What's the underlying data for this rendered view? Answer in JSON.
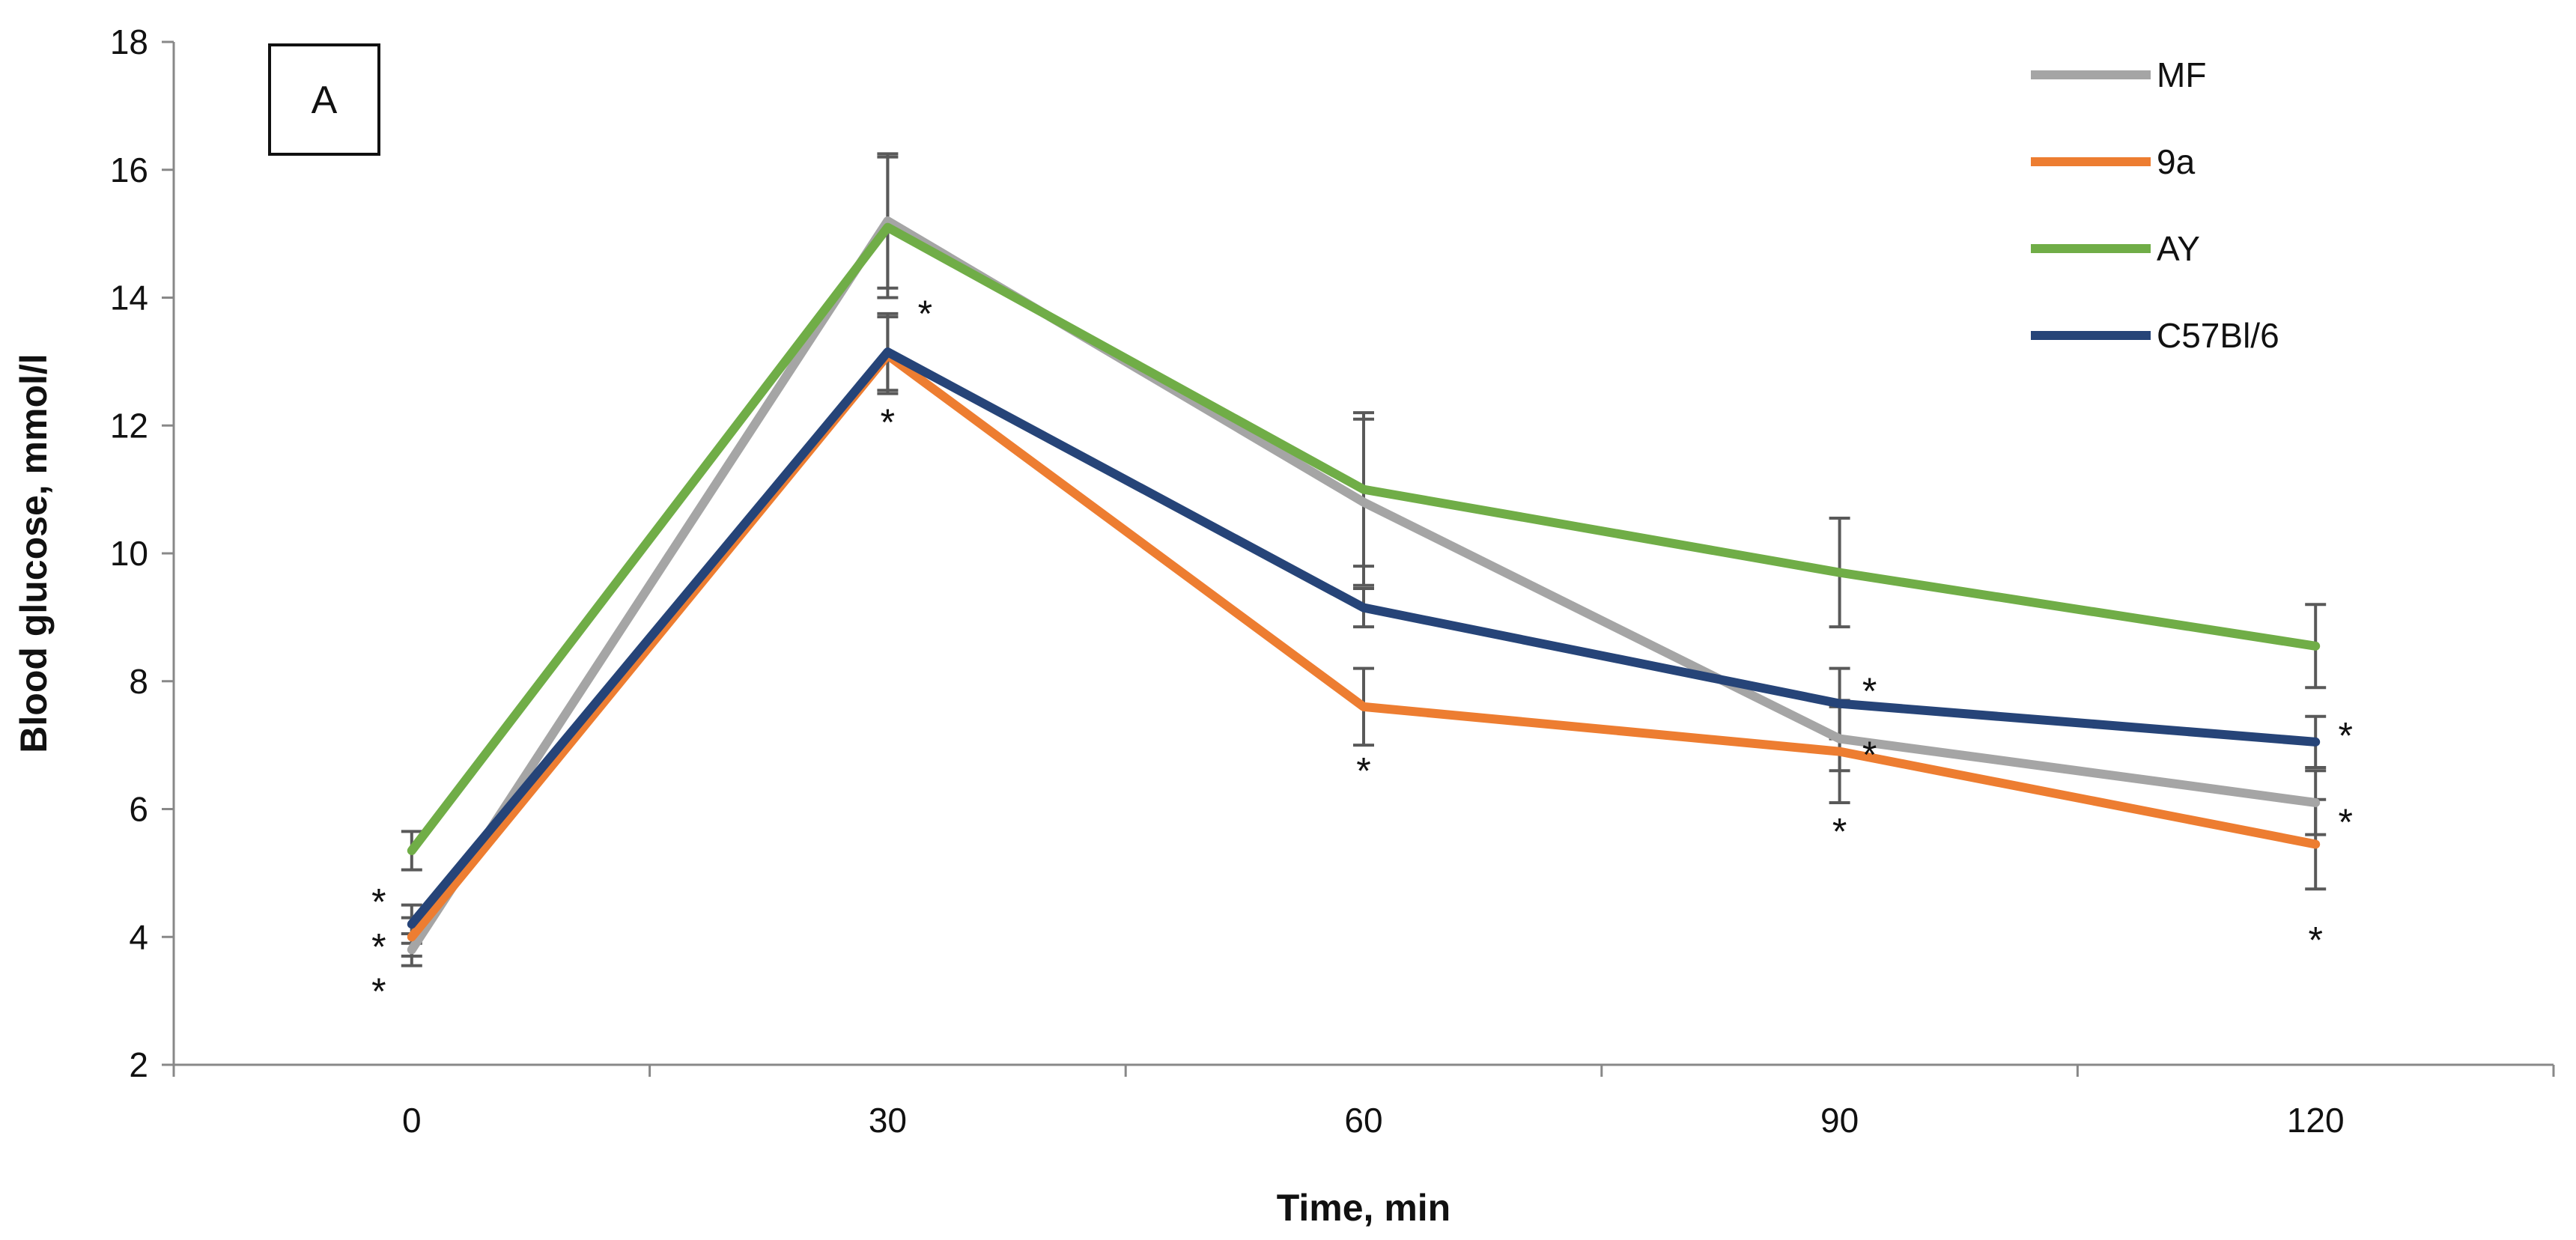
{
  "chart_data": {
    "type": "line",
    "panel_label": "A",
    "xlabel": "Time, min",
    "ylabel": "Blood glucose, mmol/l",
    "x": [
      0,
      30,
      60,
      90,
      120
    ],
    "x_tick_labels": [
      "0",
      "30",
      "60",
      "90",
      "120"
    ],
    "ylim": [
      2,
      18
    ],
    "y_ticks": [
      2,
      4,
      6,
      8,
      10,
      12,
      14,
      16,
      18
    ],
    "y_tick_labels": [
      "2",
      "4",
      "6",
      "8",
      "10",
      "12",
      "14",
      "16",
      "18"
    ],
    "legend_position": "top-right",
    "grid": false,
    "series": [
      {
        "name": "MF",
        "color": "#a5a5a5",
        "values": [
          3.8,
          15.2,
          10.8,
          7.1,
          6.1
        ],
        "errors": [
          0.25,
          1.05,
          1.3,
          0.5,
          0.5
        ]
      },
      {
        "name": "9a",
        "color": "#ed7d31",
        "values": [
          4.0,
          13.1,
          7.6,
          6.9,
          5.45
        ],
        "errors": [
          0.3,
          0.6,
          0.6,
          0.8,
          0.7
        ]
      },
      {
        "name": "AY",
        "color": "#70ad47",
        "values": [
          5.35,
          15.1,
          11.0,
          9.7,
          8.55
        ],
        "errors": [
          0.3,
          1.1,
          1.2,
          0.85,
          0.65
        ]
      },
      {
        "name": "C57Bl/6",
        "color": "#264478",
        "values": [
          4.2,
          13.15,
          9.15,
          7.65,
          7.05
        ],
        "errors": [
          0.3,
          0.6,
          0.3,
          0.55,
          0.4
        ]
      }
    ],
    "annotations": [
      {
        "text": "*",
        "x": 0,
        "y": 4.7
      },
      {
        "text": "*",
        "x": 0,
        "y": 4.0
      },
      {
        "text": "*",
        "x": 0,
        "y": 3.3
      },
      {
        "text": "*",
        "x": 30,
        "y": 13.9
      },
      {
        "text": "*",
        "x": 30,
        "y": 12.2
      },
      {
        "text": "*",
        "x": 60,
        "y": 6.75
      },
      {
        "text": "*",
        "x": 90,
        "y": 8.0
      },
      {
        "text": "*",
        "x": 90,
        "y": 7.0
      },
      {
        "text": "*",
        "x": 90,
        "y": 5.8
      },
      {
        "text": "*",
        "x": 120,
        "y": 7.3
      },
      {
        "text": "*",
        "x": 120,
        "y": 5.95
      },
      {
        "text": "*",
        "x": 120,
        "y": 4.1
      }
    ]
  }
}
